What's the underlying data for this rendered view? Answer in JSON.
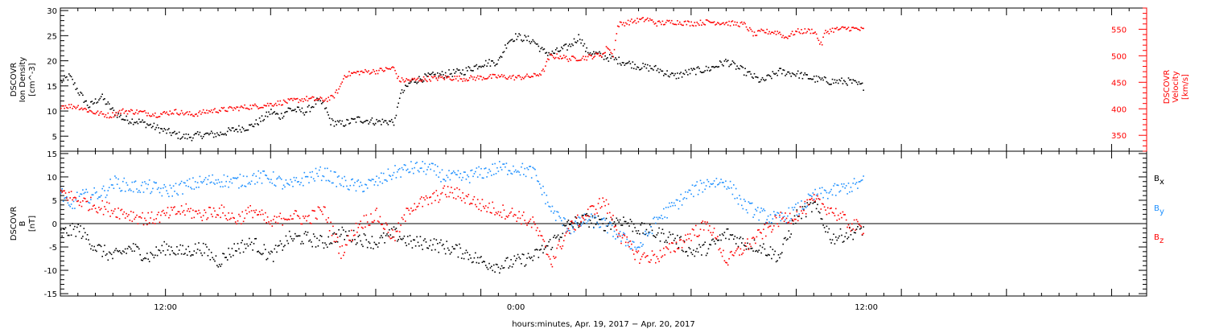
{
  "chart_data": [
    {
      "type": "scatter",
      "panel": "top",
      "left_ylabel_lines": [
        "DSCOVR",
        "Ion Density",
        "[cm^-3]"
      ],
      "right_ylabel_lines": [
        "DSCOVR",
        "Velocity",
        "[km/s]"
      ],
      "ylim_left": [
        2,
        30.5
      ],
      "ylim_right": [
        320,
        590
      ],
      "left_ticks": [
        5,
        10,
        15,
        20,
        25,
        30
      ],
      "right_ticks": [
        350,
        400,
        450,
        500,
        550
      ],
      "grid": false,
      "series": [
        {
          "color": "#000000",
          "axis": "left",
          "knots": [
            [
              0,
              16
            ],
            [
              0.5,
              17
            ],
            [
              1,
              14
            ],
            [
              1.6,
              11
            ],
            [
              2.3,
              13
            ],
            [
              3,
              10
            ],
            [
              3.6,
              8.5
            ],
            [
              4.5,
              8
            ],
            [
              5.3,
              7
            ],
            [
              5.8,
              6.3
            ],
            [
              6.5,
              5.5
            ],
            [
              7,
              5
            ],
            [
              7.5,
              5
            ],
            [
              8,
              5.4
            ],
            [
              9,
              5.5
            ],
            [
              10,
              6.5
            ],
            [
              10.8,
              7
            ],
            [
              11.5,
              8.5
            ],
            [
              12,
              10
            ],
            [
              12.5,
              9
            ],
            [
              13,
              10.5
            ],
            [
              14,
              10
            ],
            [
              14.6,
              12
            ],
            [
              15,
              11.5
            ],
            [
              15.4,
              8
            ],
            [
              16,
              7.5
            ],
            [
              17,
              8.5
            ],
            [
              18,
              8
            ],
            [
              19.1,
              8
            ],
            [
              19.3,
              13
            ],
            [
              20,
              16
            ],
            [
              21,
              17
            ],
            [
              22,
              17.5
            ],
            [
              23,
              18
            ],
            [
              24,
              19.5
            ],
            [
              25,
              20
            ],
            [
              25.5,
              24
            ],
            [
              26,
              25
            ],
            [
              27,
              24
            ],
            [
              27.5,
              22
            ],
            [
              28,
              21.5
            ],
            [
              29,
              23
            ],
            [
              29.6,
              25
            ],
            [
              30,
              22
            ],
            [
              31,
              21
            ],
            [
              32,
              20
            ],
            [
              33,
              19
            ],
            [
              34,
              18.5
            ],
            [
              35,
              17
            ],
            [
              36,
              18
            ],
            [
              37,
              18.5
            ],
            [
              38,
              20
            ],
            [
              39,
              18
            ],
            [
              40,
              16
            ],
            [
              41,
              18
            ],
            [
              42,
              17.5
            ],
            [
              43,
              16.5
            ],
            [
              44,
              16
            ],
            [
              45,
              16
            ],
            [
              45.8,
              15
            ]
          ]
        },
        {
          "color": "#ff0000",
          "axis": "right",
          "knots": [
            [
              0,
              407
            ],
            [
              1,
              405
            ],
            [
              1.8,
              395
            ],
            [
              2.8,
              388
            ],
            [
              3.5,
              397
            ],
            [
              4.5,
              395
            ],
            [
              5.5,
              390
            ],
            [
              6.5,
              396
            ],
            [
              7.5,
              390
            ],
            [
              8.5,
              397
            ],
            [
              9.5,
              400
            ],
            [
              10.5,
              404
            ],
            [
              11.5,
              407
            ],
            [
              12,
              410
            ],
            [
              13,
              415
            ],
            [
              14,
              420
            ],
            [
              15,
              418
            ],
            [
              15.5,
              422
            ],
            [
              15.9,
              440
            ],
            [
              16.2,
              465
            ],
            [
              17,
              470
            ],
            [
              18,
              472
            ],
            [
              19,
              478
            ],
            [
              19.3,
              455
            ],
            [
              20,
              455
            ],
            [
              21,
              458
            ],
            [
              22,
              460
            ],
            [
              23,
              458
            ],
            [
              24,
              460
            ],
            [
              25,
              462
            ],
            [
              26,
              460
            ],
            [
              27,
              463
            ],
            [
              27.5,
              470
            ],
            [
              27.9,
              500
            ],
            [
              28.5,
              500
            ],
            [
              29,
              495
            ],
            [
              30,
              498
            ],
            [
              31,
              505
            ],
            [
              31.2,
              520
            ],
            [
              31.5,
              500
            ],
            [
              31.8,
              560
            ],
            [
              32.5,
              565
            ],
            [
              33,
              568
            ],
            [
              33.5,
              570
            ],
            [
              34,
              562
            ],
            [
              35,
              565
            ],
            [
              36,
              562
            ],
            [
              37,
              565
            ],
            [
              38,
              563
            ],
            [
              39,
              560
            ],
            [
              39.6,
              540
            ],
            [
              40,
              547
            ],
            [
              41,
              545
            ],
            [
              41.3,
              535
            ],
            [
              42,
              547
            ],
            [
              43,
              548
            ],
            [
              43.4,
              520
            ],
            [
              43.6,
              545
            ],
            [
              44,
              550
            ],
            [
              45,
              553
            ],
            [
              45.8,
              550
            ]
          ]
        }
      ]
    },
    {
      "type": "scatter",
      "panel": "bottom",
      "left_ylabel_lines": [
        "DSCOVR",
        "B",
        "[nT]"
      ],
      "ylim": [
        -15.5,
        15.5
      ],
      "ticks": [
        -15,
        -10,
        -5,
        0,
        5,
        10,
        15
      ],
      "zero_line": true,
      "grid": false,
      "series": [
        {
          "name": "Bx",
          "color": "#000000",
          "knots": [
            [
              0,
              -2
            ],
            [
              1,
              -1
            ],
            [
              2,
              -5
            ],
            [
              3,
              -7
            ],
            [
              4,
              -5
            ],
            [
              5,
              -7
            ],
            [
              6,
              -5
            ],
            [
              7,
              -6
            ],
            [
              8,
              -5
            ],
            [
              9,
              -8
            ],
            [
              10,
              -5
            ],
            [
              11,
              -4
            ],
            [
              12,
              -7
            ],
            [
              13,
              -3
            ],
            [
              14,
              -3
            ],
            [
              15,
              -4
            ],
            [
              16,
              -2
            ],
            [
              17,
              -3
            ],
            [
              18,
              -4
            ],
            [
              19,
              -2
            ],
            [
              20,
              -4
            ],
            [
              21,
              -4
            ],
            [
              22,
              -5
            ],
            [
              23,
              -6
            ],
            [
              24,
              -8
            ],
            [
              25,
              -9
            ],
            [
              26,
              -8
            ],
            [
              27,
              -7
            ],
            [
              28,
              -4
            ],
            [
              29,
              0
            ],
            [
              30,
              1
            ],
            [
              31,
              0
            ],
            [
              32,
              1
            ],
            [
              33,
              -1
            ],
            [
              34,
              -2
            ],
            [
              35,
              -3
            ],
            [
              36,
              -6
            ],
            [
              37,
              -5
            ],
            [
              38,
              -2
            ],
            [
              39,
              -4
            ],
            [
              40,
              -5
            ],
            [
              41,
              -7
            ],
            [
              42,
              2
            ],
            [
              43,
              4
            ],
            [
              44,
              -3
            ],
            [
              45,
              -2
            ],
            [
              45.8,
              -1
            ]
          ]
        },
        {
          "name": "By",
          "color": "#1e90ff",
          "knots": [
            [
              0,
              7
            ],
            [
              0.5,
              3
            ],
            [
              1,
              6
            ],
            [
              1.6,
              6
            ],
            [
              2.5,
              7
            ],
            [
              3,
              9
            ],
            [
              4,
              8
            ],
            [
              5,
              8
            ],
            [
              6,
              7
            ],
            [
              7,
              8
            ],
            [
              8,
              9
            ],
            [
              9,
              9.5
            ],
            [
              10,
              9
            ],
            [
              11,
              10
            ],
            [
              12,
              10
            ],
            [
              13,
              8
            ],
            [
              14,
              10
            ],
            [
              15,
              11
            ],
            [
              16,
              9
            ],
            [
              17,
              8
            ],
            [
              18,
              9
            ],
            [
              19,
              11
            ],
            [
              20,
              12
            ],
            [
              21,
              12
            ],
            [
              22,
              10
            ],
            [
              23,
              10
            ],
            [
              24,
              11
            ],
            [
              25,
              12
            ],
            [
              26,
              12
            ],
            [
              27,
              11
            ],
            [
              28,
              3
            ],
            [
              29,
              -1
            ],
            [
              30,
              1
            ],
            [
              31,
              0
            ],
            [
              32,
              -3
            ],
            [
              33,
              -5
            ],
            [
              34,
              1
            ],
            [
              35,
              4
            ],
            [
              36,
              7
            ],
            [
              37,
              9
            ],
            [
              38,
              9
            ],
            [
              39,
              4
            ],
            [
              40,
              2
            ],
            [
              41,
              1
            ],
            [
              42,
              3
            ],
            [
              43,
              6
            ],
            [
              44,
              7
            ],
            [
              45,
              8
            ],
            [
              45.8,
              9
            ]
          ]
        },
        {
          "name": "Bz",
          "color": "#ff0000",
          "knots": [
            [
              0,
              7
            ],
            [
              1,
              5
            ],
            [
              2,
              4
            ],
            [
              3,
              3
            ],
            [
              4,
              2
            ],
            [
              5,
              1
            ],
            [
              6,
              2
            ],
            [
              7,
              3
            ],
            [
              8,
              2
            ],
            [
              9,
              3
            ],
            [
              10,
              1
            ],
            [
              11,
              3
            ],
            [
              12,
              0
            ],
            [
              13,
              2
            ],
            [
              14,
              1
            ],
            [
              15,
              3
            ],
            [
              16,
              -6
            ],
            [
              17,
              0
            ],
            [
              18,
              2
            ],
            [
              19,
              -3
            ],
            [
              20,
              4
            ],
            [
              21,
              5
            ],
            [
              22,
              7
            ],
            [
              23,
              6
            ],
            [
              24,
              4
            ],
            [
              25,
              3
            ],
            [
              26,
              2
            ],
            [
              27,
              0
            ],
            [
              28,
              -8
            ],
            [
              29,
              -1
            ],
            [
              30,
              2
            ],
            [
              31,
              5
            ],
            [
              32,
              -3
            ],
            [
              33,
              -7
            ],
            [
              34,
              -7
            ],
            [
              35,
              -5
            ],
            [
              36,
              -2
            ],
            [
              37,
              0
            ],
            [
              38,
              -8
            ],
            [
              39,
              -5
            ],
            [
              40,
              -2
            ],
            [
              41,
              1
            ],
            [
              42,
              2
            ],
            [
              43,
              5
            ],
            [
              44,
              3
            ],
            [
              45,
              0
            ],
            [
              45.8,
              -1
            ]
          ]
        }
      ],
      "legend": [
        {
          "main": "B",
          "sub": "x",
          "color": "#000000"
        },
        {
          "main": "B",
          "sub": "y",
          "color": "#1e90ff"
        },
        {
          "main": "B",
          "sub": "z",
          "color": "#ff0000"
        }
      ]
    }
  ],
  "x_axis": {
    "range_hours": [
      0,
      62
    ],
    "tick_labels": [
      {
        "label": "12:00",
        "hour": 6
      },
      {
        "label": "0:00",
        "hour": 26
      },
      {
        "label": "12:00",
        "hour": 46
      }
    ],
    "xlabel": "hours:minutes, Apr. 19, 2017 − Apr. 20, 2017"
  }
}
